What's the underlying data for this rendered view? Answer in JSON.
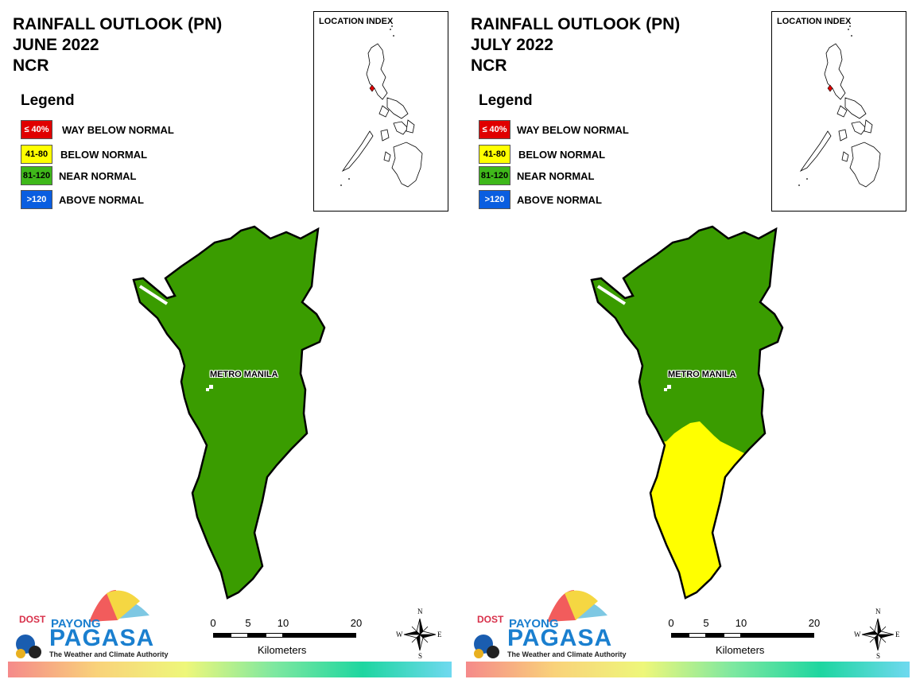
{
  "panels": [
    {
      "title_line1": "RAINFALL OUTLOOK (PN)",
      "title_line2": "JUNE 2022",
      "title_line3": "NCR",
      "region_label": "METRO MANILA",
      "region_fill_top": "#3a9c00",
      "region_fill_bottom": "#3a9c00"
    },
    {
      "title_line1": "RAINFALL OUTLOOK (PN)",
      "title_line2": "JULY 2022",
      "title_line3": "NCR",
      "region_label": "METRO MANILA",
      "region_fill_top": "#3a9c00",
      "region_fill_bottom": "#ffff00"
    }
  ],
  "legend": {
    "title": "Legend",
    "items": [
      {
        "swatch": "≤ 40%",
        "label": "WAY BELOW NORMAL",
        "color": "#e00000",
        "text_color": "#ffffff"
      },
      {
        "swatch": "41-80",
        "label": "BELOW NORMAL",
        "color": "#ffff00",
        "text_color": "#000000"
      },
      {
        "swatch": "81-120",
        "label": "NEAR NORMAL",
        "color": "#3fb81a",
        "text_color": "#000000"
      },
      {
        "swatch": ">120",
        "label": "ABOVE NORMAL",
        "color": "#0a5ee0",
        "text_color": "#ffffff"
      }
    ]
  },
  "location_index": {
    "title": "LOCATION INDEX"
  },
  "scale_bar": {
    "ticks": [
      "0",
      "5",
      "10",
      "20"
    ],
    "units": "Kilometers"
  },
  "compass": {
    "n": "N",
    "s": "S",
    "e": "E",
    "w": "W"
  },
  "logo": {
    "dost": "DOST",
    "payong": "PAYONG",
    "pagasa": "PAGASA",
    "tagline": "The Weather and Climate Authority"
  }
}
